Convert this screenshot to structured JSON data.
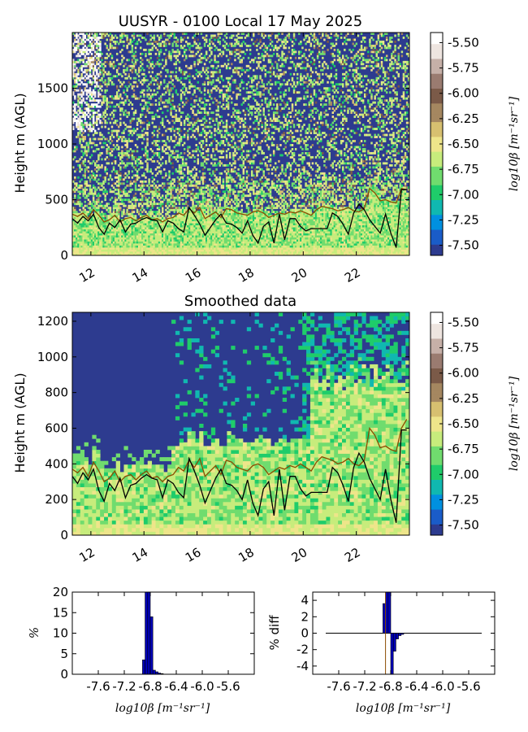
{
  "colors": {
    "scale": [
      "#2d3b8f",
      "#1a5cc8",
      "#0090e0",
      "#10b8b0",
      "#1fcc6a",
      "#70dc6e",
      "#c7ec7c",
      "#eee58a",
      "#d7c070",
      "#a58760",
      "#7b5a48",
      "#9a7b70",
      "#c6b0a8",
      "#eee5e0",
      "#ffffff"
    ],
    "brown_line": "#8b4c00",
    "black_line": "#000000",
    "hist_fill": "#0000b8",
    "hist_edge": "#000000"
  },
  "chart_data": [
    {
      "id": "raw",
      "type": "heatmap",
      "title": "UUSYR - 0100 Local 17 May 2025",
      "ylabel": "Height m (AGL)",
      "xlabel": "",
      "xlim": [
        11.3,
        24.0
      ],
      "ylim": [
        0,
        2000
      ],
      "xticks": [
        12,
        14,
        16,
        18,
        20,
        22
      ],
      "yticks": [
        0,
        500,
        1000,
        1500
      ],
      "colorbar": {
        "label": "log10β [m⁻¹sr⁻¹]",
        "range": [
          -7.6,
          -5.4
        ],
        "ticks": [
          "-5.50",
          "-5.75",
          "-6.00",
          "-6.25",
          "-6.50",
          "-6.75",
          "-7.00",
          "-7.25",
          "-7.50"
        ]
      },
      "series": [
        {
          "role": "brown line",
          "x": [
            11.3,
            11.5,
            11.7,
            11.9,
            12.1,
            12.3,
            12.5,
            12.7,
            12.9,
            13.1,
            13.3,
            13.5,
            13.7,
            13.9,
            14.1,
            14.3,
            14.5,
            14.7,
            14.9,
            15.1,
            15.3,
            15.5,
            15.7,
            15.9,
            16.1,
            16.3,
            16.5,
            16.7,
            16.9,
            17.1,
            17.3,
            17.5,
            17.7,
            17.9,
            18.1,
            18.3,
            18.5,
            18.7,
            18.9,
            19.1,
            19.3,
            19.5,
            19.7,
            19.9,
            20.1,
            20.3,
            20.5,
            20.7,
            20.9,
            21.1,
            21.3,
            21.5,
            21.7,
            21.9,
            22.1,
            22.3,
            22.5,
            22.7,
            22.9,
            23.1,
            23.3,
            23.5,
            23.7,
            23.9
          ],
          "y": [
            370,
            350,
            380,
            330,
            410,
            360,
            300,
            320,
            360,
            300,
            330,
            340,
            310,
            340,
            360,
            320,
            330,
            300,
            330,
            340,
            380,
            360,
            420,
            380,
            430,
            330,
            360,
            390,
            340,
            420,
            410,
            380,
            370,
            360,
            390,
            400,
            380,
            340,
            360,
            380,
            370,
            390,
            380,
            400,
            380,
            360,
            410,
            440,
            430,
            420,
            400,
            410,
            430,
            400,
            390,
            420,
            600,
            560,
            490,
            500,
            480,
            470,
            600,
            590
          ]
        },
        {
          "role": "black line",
          "x": [
            11.3,
            11.5,
            11.7,
            11.9,
            12.1,
            12.3,
            12.5,
            12.7,
            12.9,
            13.1,
            13.3,
            13.5,
            13.7,
            13.9,
            14.1,
            14.3,
            14.5,
            14.7,
            14.9,
            15.1,
            15.3,
            15.5,
            15.7,
            15.9,
            16.1,
            16.3,
            16.5,
            16.7,
            16.9,
            17.1,
            17.3,
            17.5,
            17.7,
            17.9,
            18.1,
            18.3,
            18.5,
            18.7,
            18.9,
            19.1,
            19.3,
            19.5,
            19.7,
            19.9,
            20.1,
            20.3,
            20.5,
            20.7,
            20.9,
            21.1,
            21.3,
            21.5,
            21.7,
            21.9,
            22.1,
            22.3,
            22.5,
            22.7,
            22.9,
            23.1,
            23.3,
            23.5,
            23.7,
            23.9
          ],
          "y": [
            330,
            290,
            350,
            310,
            370,
            250,
            190,
            290,
            250,
            320,
            210,
            280,
            290,
            320,
            340,
            320,
            310,
            210,
            310,
            290,
            240,
            210,
            430,
            360,
            280,
            180,
            250,
            320,
            370,
            290,
            280,
            250,
            200,
            310,
            180,
            110,
            260,
            300,
            110,
            370,
            140,
            330,
            330,
            260,
            220,
            240,
            240,
            240,
            240,
            380,
            350,
            280,
            190,
            380,
            460,
            410,
            320,
            260,
            200,
            370,
            200,
            70,
            590,
            590
          ]
        }
      ]
    },
    {
      "id": "smoothed",
      "type": "heatmap",
      "title": "Smoothed data",
      "ylabel": "Height m (AGL)",
      "xlabel": "",
      "xlim": [
        11.3,
        24.0
      ],
      "ylim": [
        0,
        1250
      ],
      "xticks": [
        12,
        14,
        16,
        18,
        20,
        22
      ],
      "yticks": [
        0,
        200,
        400,
        600,
        800,
        1000,
        1200
      ],
      "colorbar": {
        "label": "log10β [m⁻¹sr⁻¹]",
        "range": [
          -7.6,
          -5.4
        ],
        "ticks": [
          "-5.50",
          "-5.75",
          "-6.00",
          "-6.25",
          "-6.50",
          "-6.75",
          "-7.00",
          "-7.25",
          "-7.50"
        ]
      },
      "series": [
        {
          "role": "brown line",
          "x": [
            11.3,
            11.5,
            11.7,
            11.9,
            12.1,
            12.3,
            12.5,
            12.7,
            12.9,
            13.1,
            13.3,
            13.5,
            13.7,
            13.9,
            14.1,
            14.3,
            14.5,
            14.7,
            14.9,
            15.1,
            15.3,
            15.5,
            15.7,
            15.9,
            16.1,
            16.3,
            16.5,
            16.7,
            16.9,
            17.1,
            17.3,
            17.5,
            17.7,
            17.9,
            18.1,
            18.3,
            18.5,
            18.7,
            18.9,
            19.1,
            19.3,
            19.5,
            19.7,
            19.9,
            20.1,
            20.3,
            20.5,
            20.7,
            20.9,
            21.1,
            21.3,
            21.5,
            21.7,
            21.9,
            22.1,
            22.3,
            22.5,
            22.7,
            22.9,
            23.1,
            23.3,
            23.5,
            23.7,
            23.9
          ],
          "y": [
            370,
            350,
            380,
            330,
            410,
            360,
            300,
            320,
            360,
            300,
            330,
            340,
            310,
            340,
            360,
            320,
            330,
            300,
            330,
            340,
            380,
            360,
            420,
            380,
            430,
            330,
            360,
            390,
            340,
            420,
            410,
            380,
            370,
            360,
            390,
            400,
            380,
            340,
            360,
            380,
            370,
            390,
            380,
            400,
            380,
            360,
            410,
            440,
            430,
            420,
            400,
            410,
            430,
            400,
            390,
            420,
            600,
            560,
            490,
            500,
            480,
            470,
            600,
            650
          ]
        },
        {
          "role": "black line",
          "x": [
            11.3,
            11.5,
            11.7,
            11.9,
            12.1,
            12.3,
            12.5,
            12.7,
            12.9,
            13.1,
            13.3,
            13.5,
            13.7,
            13.9,
            14.1,
            14.3,
            14.5,
            14.7,
            14.9,
            15.1,
            15.3,
            15.5,
            15.7,
            15.9,
            16.1,
            16.3,
            16.5,
            16.7,
            16.9,
            17.1,
            17.3,
            17.5,
            17.7,
            17.9,
            18.1,
            18.3,
            18.5,
            18.7,
            18.9,
            19.1,
            19.3,
            19.5,
            19.7,
            19.9,
            20.1,
            20.3,
            20.5,
            20.7,
            20.9,
            21.1,
            21.3,
            21.5,
            21.7,
            21.9,
            22.1,
            22.3,
            22.5,
            22.7,
            22.9,
            23.1,
            23.3,
            23.5,
            23.7,
            23.9
          ],
          "y": [
            330,
            290,
            350,
            310,
            370,
            250,
            190,
            290,
            250,
            320,
            210,
            280,
            290,
            320,
            340,
            320,
            310,
            210,
            310,
            290,
            240,
            210,
            430,
            360,
            280,
            180,
            250,
            320,
            370,
            290,
            280,
            250,
            200,
            310,
            180,
            110,
            260,
            300,
            110,
            370,
            140,
            330,
            330,
            260,
            220,
            240,
            240,
            240,
            240,
            380,
            350,
            280,
            190,
            380,
            460,
            410,
            320,
            260,
            200,
            370,
            200,
            70,
            590,
            590
          ]
        }
      ]
    },
    {
      "id": "hist",
      "type": "bar",
      "ylabel": "%",
      "xlabel": "log10β [m⁻¹sr⁻¹]",
      "xlim": [
        -8.0,
        -5.2
      ],
      "ylim": [
        0,
        20
      ],
      "xticks": [
        "-7.6",
        "-7.2",
        "-6.8",
        "-6.4",
        "-6.0",
        "-5.6"
      ],
      "yticks": [
        0,
        5,
        10,
        15,
        20
      ],
      "bars": [
        {
          "x": -6.9,
          "value": 3.5
        },
        {
          "x": -6.86,
          "value": 20
        },
        {
          "x": -6.82,
          "value": 20
        },
        {
          "x": -6.78,
          "value": 14
        },
        {
          "x": -6.74,
          "value": 1.0
        },
        {
          "x": -6.7,
          "value": 0.6
        },
        {
          "x": -6.66,
          "value": 0.3
        },
        {
          "x": -6.62,
          "value": 0.15
        }
      ],
      "bin_width": 0.04
    },
    {
      "id": "diff",
      "type": "bar",
      "ylabel": "% diff",
      "xlabel": "log10β [m⁻¹sr⁻¹]",
      "xlim": [
        -8.0,
        -5.2
      ],
      "ylim": [
        -5,
        5
      ],
      "xticks": [
        "-7.6",
        "-7.2",
        "-6.8",
        "-6.4",
        "-6.0",
        "-5.6"
      ],
      "yticks": [
        -4,
        -2,
        0,
        2,
        4
      ],
      "zero_line": [
        -7.8,
        -5.4
      ],
      "bars": [
        {
          "x": -6.9,
          "value": 3.6
        },
        {
          "x": -6.86,
          "value": 5
        },
        {
          "x": -6.82,
          "value": 5
        },
        {
          "x": -6.78,
          "value": -5
        },
        {
          "x": -6.74,
          "value": -2.2
        },
        {
          "x": -6.7,
          "value": -0.7
        },
        {
          "x": -6.66,
          "value": -0.3
        },
        {
          "x": -6.62,
          "value": -0.15
        }
      ],
      "bin_width": 0.04,
      "vline": -6.88
    }
  ]
}
